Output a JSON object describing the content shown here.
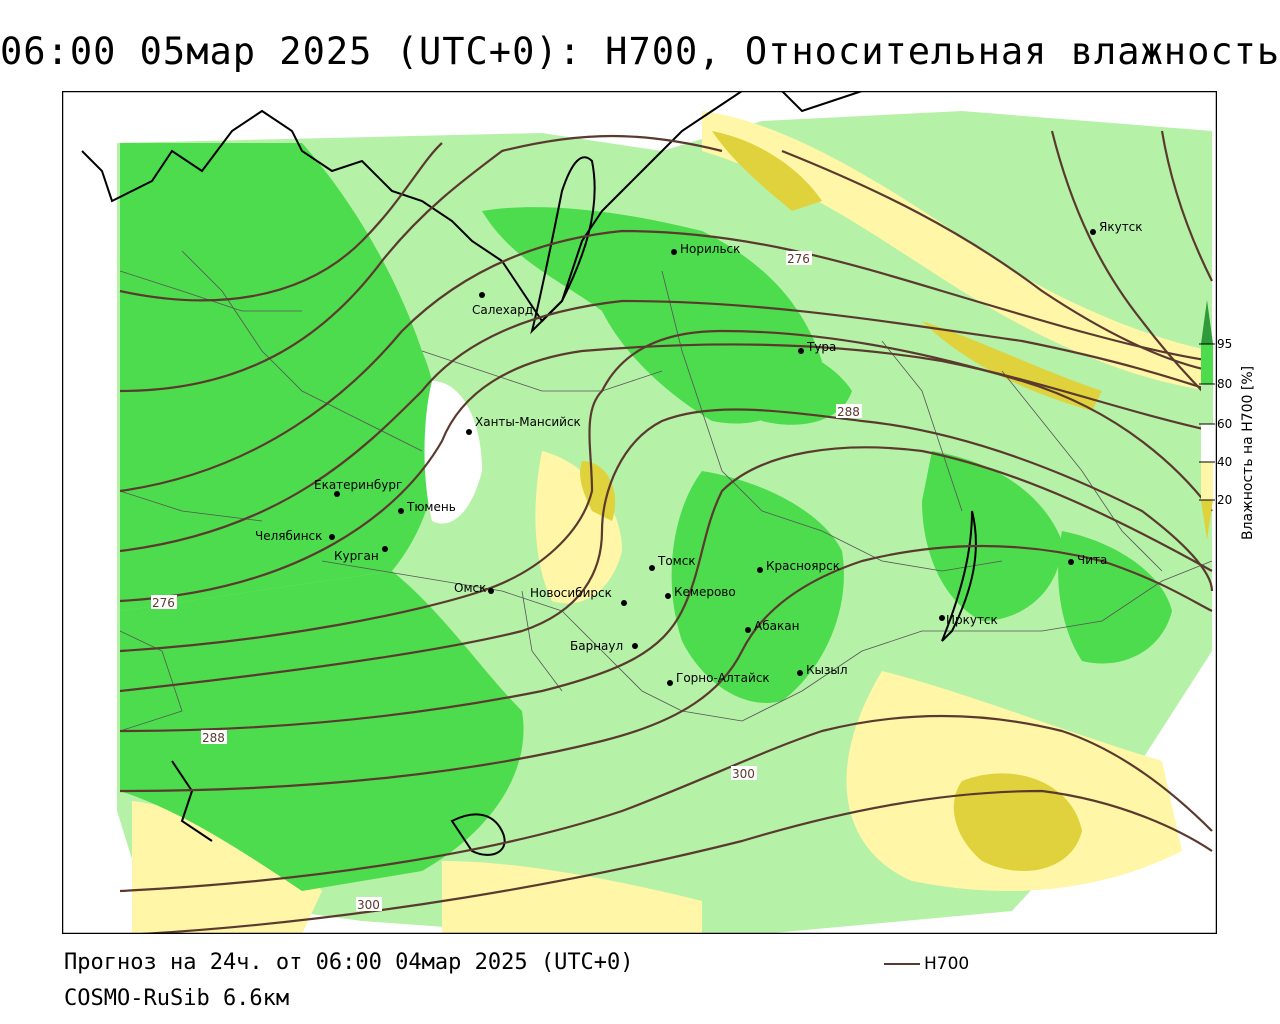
{
  "header": {
    "title": "06:00 05мар 2025 (UTC+0): H700, Относительная влажность"
  },
  "colors": {
    "green_dark": "#4ddc4d",
    "green_light": "#b6f1a8",
    "yellow_light": "#fff6a8",
    "yellow_dark": "#e0d23c",
    "isoline": "#5a3a2e",
    "border": "#555555"
  },
  "cities": [
    {
      "name": "Якутск"
    },
    {
      "name": "Норильск"
    },
    {
      "name": "Салехард"
    },
    {
      "name": "Тура"
    },
    {
      "name": "Ханты-Мансийск"
    },
    {
      "name": "Екатеринбург"
    },
    {
      "name": "Тюмень"
    },
    {
      "name": "Челябинск"
    },
    {
      "name": "Курган"
    },
    {
      "name": "Омск"
    },
    {
      "name": "Новосибирск"
    },
    {
      "name": "Томск"
    },
    {
      "name": "Кемерово"
    },
    {
      "name": "Красноярск"
    },
    {
      "name": "Абакан"
    },
    {
      "name": "Барнаул"
    },
    {
      "name": "Горно-Алтайск"
    },
    {
      "name": "Кызыл"
    },
    {
      "name": "Иркутск"
    },
    {
      "name": "Чита"
    }
  ],
  "isolines": {
    "labels": [
      "276",
      "288",
      "276",
      "288",
      "300",
      "300"
    ]
  },
  "colorbar": {
    "ticks": [
      "95",
      "80",
      "60",
      "40",
      "20"
    ],
    "title": "Влажность на H700 [%]"
  },
  "footer": {
    "forecast": "Прогноз на 24ч. от 06:00 04мар 2025 (UTC+0)",
    "model": "COSMO-RuSib 6.6км",
    "legend_label": "H700"
  }
}
